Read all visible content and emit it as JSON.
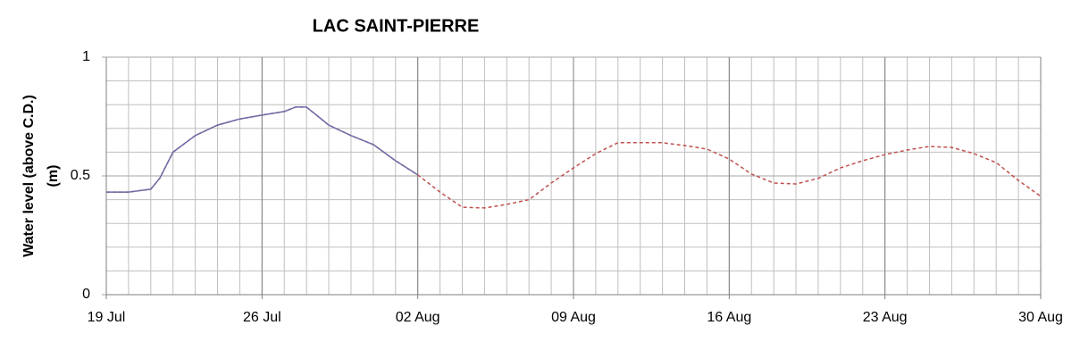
{
  "chart_data": {
    "type": "line",
    "title": "LAC SAINT-PIERRE",
    "ylabel": [
      "Water level (above C.D.)",
      "(m)"
    ],
    "xlim": [
      0,
      42
    ],
    "xticks": [
      {
        "value": 0,
        "label": "19 Jul"
      },
      {
        "value": 7,
        "label": "26 Jul"
      },
      {
        "value": 14,
        "label": "02 Aug"
      },
      {
        "value": 21,
        "label": "09 Aug"
      },
      {
        "value": 28,
        "label": "16 Aug"
      },
      {
        "value": 35,
        "label": "23 Aug"
      },
      {
        "value": 42,
        "label": "30 Aug"
      }
    ],
    "ylim": [
      0,
      1
    ],
    "yticks": [
      0,
      0.5,
      1
    ],
    "grid": true,
    "series": [
      {
        "color": "#c0504d",
        "dashed": true,
        "x": [
          0,
          1,
          2,
          2.4,
          3,
          4,
          5,
          6,
          7,
          8,
          8.5,
          9,
          9.5,
          10,
          11,
          12,
          13,
          14,
          15,
          16,
          17,
          18,
          19,
          20,
          21,
          22,
          23,
          24,
          25,
          26,
          27,
          28,
          29,
          30,
          31,
          32,
          33,
          34,
          35,
          36,
          37,
          38,
          39,
          40,
          41,
          42
        ],
        "values": [
          0.432,
          0.432,
          0.444,
          0.49,
          0.6,
          0.67,
          0.714,
          0.74,
          0.756,
          0.771,
          0.79,
          0.79,
          0.752,
          0.714,
          0.67,
          0.632,
          0.564,
          0.504,
          0.432,
          0.368,
          0.365,
          0.38,
          0.4,
          0.47,
          0.534,
          0.594,
          0.64,
          0.64,
          0.64,
          0.628,
          0.613,
          0.571,
          0.508,
          0.47,
          0.466,
          0.49,
          0.534,
          0.564,
          0.59,
          0.609,
          0.624,
          0.62,
          0.594,
          0.556,
          0.481,
          0.414
        ]
      },
      {
        "color": "#6b6ba6",
        "dashed": false,
        "x": [
          0,
          1,
          2,
          2.4,
          3,
          4,
          5,
          6,
          7,
          8,
          8.5,
          9,
          9.5,
          10,
          11,
          12,
          13,
          14
        ],
        "values": [
          0.432,
          0.432,
          0.444,
          0.49,
          0.6,
          0.67,
          0.714,
          0.74,
          0.756,
          0.771,
          0.79,
          0.79,
          0.752,
          0.714,
          0.67,
          0.632,
          0.564,
          0.504
        ]
      }
    ]
  }
}
